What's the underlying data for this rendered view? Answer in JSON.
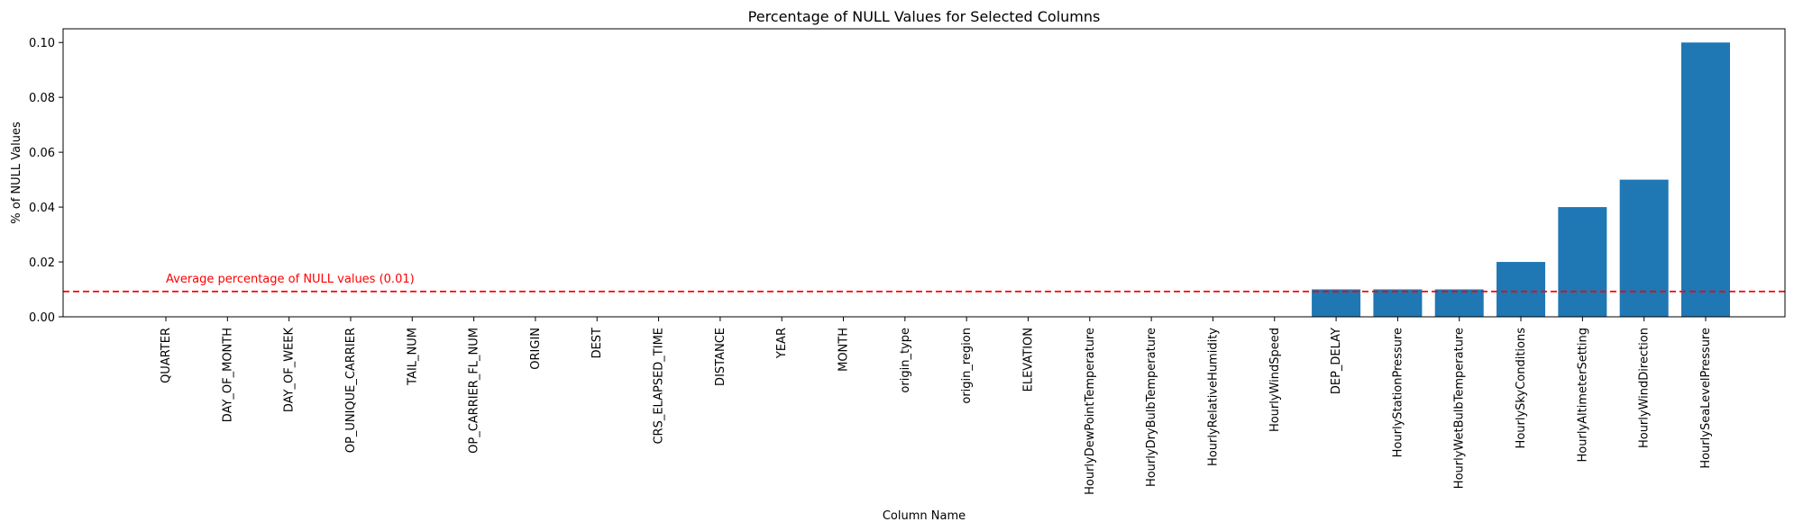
{
  "chart_data": {
    "type": "bar",
    "title": "Percentage of NULL Values for Selected Columns",
    "xlabel": "Column Name",
    "ylabel": "% of NULL Values",
    "categories": [
      "QUARTER",
      "DAY_OF_MONTH",
      "DAY_OF_WEEK",
      "OP_UNIQUE_CARRIER",
      "TAIL_NUM",
      "OP_CARRIER_FL_NUM",
      "ORIGIN",
      "DEST",
      "CRS_ELAPSED_TIME",
      "DISTANCE",
      "YEAR",
      "MONTH",
      "origin_type",
      "origin_region",
      "ELEVATION",
      "HourlyDewPointTemperature",
      "HourlyDryBulbTemperature",
      "HourlyRelativeHumidity",
      "HourlyWindSpeed",
      "DEP_DELAY",
      "HourlyStationPressure",
      "HourlyWetBulbTemperature",
      "HourlySkyConditions",
      "HourlyAltimeterSetting",
      "HourlyWindDirection",
      "HourlySeaLevelPressure"
    ],
    "values": [
      0,
      0,
      0,
      0,
      0,
      0,
      0,
      0,
      0,
      0,
      0,
      0,
      0,
      0,
      0,
      0,
      0,
      0,
      0,
      0.01,
      0.01,
      0.01,
      0.02,
      0.04,
      0.05,
      0.1
    ],
    "ylim": [
      0,
      0.105
    ],
    "yticks": [
      "0.00",
      "0.02",
      "0.04",
      "0.06",
      "0.08",
      "0.10"
    ],
    "grid": false,
    "bar_color": "#1f77b4",
    "average_line": {
      "value": 0.00923,
      "label": "Average percentage of NULL values (0.01)",
      "color": "#ff0000"
    }
  }
}
